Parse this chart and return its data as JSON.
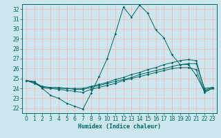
{
  "xlabel": "Humidex (Indice chaleur)",
  "background_color": "#cce8ee",
  "grid_color": "#ffb0b0",
  "line_color": "#006666",
  "xlim": [
    -0.5,
    23.5
  ],
  "ylim": [
    21.5,
    32.5
  ],
  "xticks": [
    0,
    1,
    2,
    3,
    4,
    5,
    6,
    7,
    8,
    9,
    10,
    11,
    12,
    13,
    14,
    15,
    16,
    17,
    18,
    19,
    20,
    21,
    22,
    23
  ],
  "yticks": [
    22,
    23,
    24,
    25,
    26,
    27,
    28,
    29,
    30,
    31,
    32
  ],
  "series": [
    [
      24.8,
      24.7,
      24.0,
      23.3,
      23.0,
      22.5,
      22.2,
      21.9,
      23.5,
      25.2,
      27.0,
      29.5,
      32.2,
      31.2,
      32.4,
      31.6,
      29.9,
      29.1,
      27.4,
      26.4,
      26.4,
      25.3,
      23.7,
      24.0
    ],
    [
      24.8,
      24.6,
      24.1,
      24.0,
      24.0,
      24.0,
      23.9,
      23.9,
      24.1,
      24.3,
      24.5,
      24.7,
      24.9,
      25.1,
      25.4,
      25.6,
      25.8,
      26.0,
      26.2,
      26.4,
      26.5,
      26.5,
      24.0,
      24.1
    ],
    [
      24.8,
      24.6,
      24.2,
      24.1,
      24.1,
      24.0,
      24.0,
      24.0,
      24.2,
      24.4,
      24.6,
      24.9,
      25.1,
      25.4,
      25.6,
      25.9,
      26.1,
      26.4,
      26.6,
      26.8,
      26.9,
      26.8,
      23.8,
      24.1
    ],
    [
      24.8,
      24.5,
      24.1,
      24.0,
      23.9,
      23.8,
      23.7,
      23.6,
      23.9,
      24.1,
      24.3,
      24.5,
      24.8,
      25.0,
      25.2,
      25.4,
      25.6,
      25.8,
      26.0,
      26.1,
      26.1,
      25.9,
      23.6,
      24.0
    ]
  ]
}
